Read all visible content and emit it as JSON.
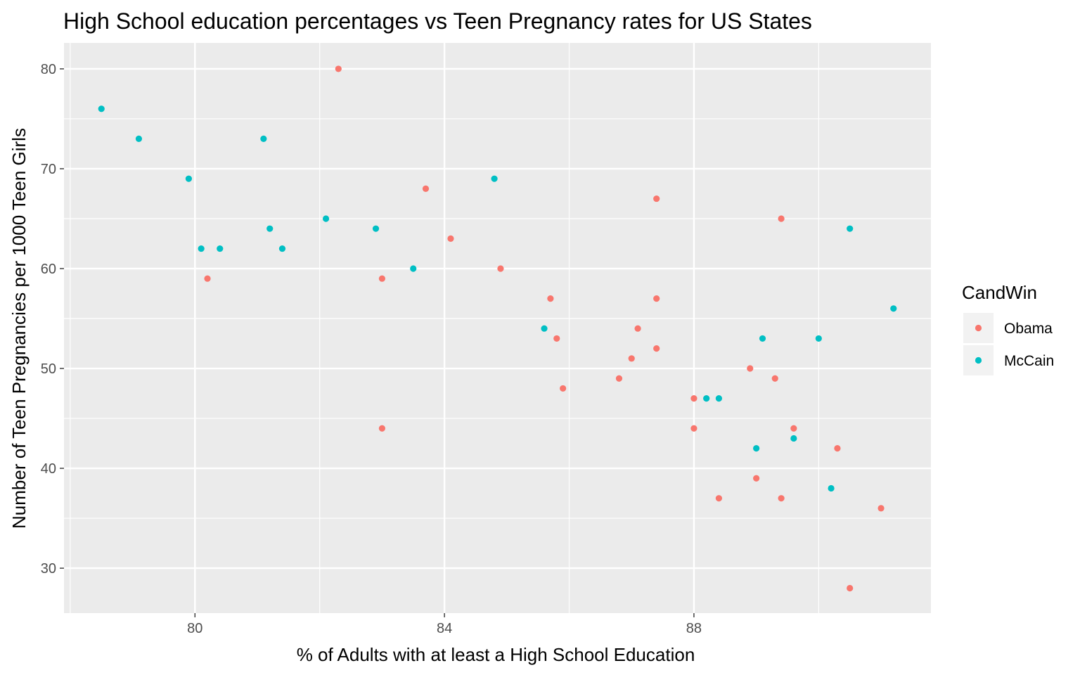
{
  "chart_data": {
    "type": "scatter",
    "title": "High School education percentages vs Teen Pregnancy rates for US States",
    "xlabel": "% of Adults with at least a High School Education",
    "ylabel": "Number of Teen Pregnancies per 1000 Teen Girls",
    "xlim": [
      77.9,
      91.8
    ],
    "ylim": [
      25.5,
      82.6
    ],
    "x_ticks": [
      80,
      84,
      88
    ],
    "y_ticks": [
      30,
      40,
      50,
      60,
      70,
      80
    ],
    "grid": true,
    "legend": {
      "title": "CandWin",
      "position": "right"
    },
    "colors": {
      "Obama": "#F8766D",
      "McCain": "#00BFC4"
    },
    "series": [
      {
        "name": "Obama",
        "points": [
          [
            82.3,
            80
          ],
          [
            83.7,
            68
          ],
          [
            84.1,
            63
          ],
          [
            80.2,
            59
          ],
          [
            83.0,
            59
          ],
          [
            84.9,
            60
          ],
          [
            83.0,
            44
          ],
          [
            85.7,
            57
          ],
          [
            85.8,
            53
          ],
          [
            85.9,
            48
          ],
          [
            86.8,
            49
          ],
          [
            87.0,
            51
          ],
          [
            87.1,
            54
          ],
          [
            87.4,
            67
          ],
          [
            87.4,
            57
          ],
          [
            87.4,
            52
          ],
          [
            88.0,
            47
          ],
          [
            88.0,
            44
          ],
          [
            88.4,
            37
          ],
          [
            88.9,
            50
          ],
          [
            89.0,
            39
          ],
          [
            89.3,
            49
          ],
          [
            89.4,
            65
          ],
          [
            89.4,
            37
          ],
          [
            89.6,
            44
          ],
          [
            90.3,
            42
          ],
          [
            90.5,
            28
          ],
          [
            91.0,
            36
          ]
        ]
      },
      {
        "name": "McCain",
        "points": [
          [
            78.5,
            76
          ],
          [
            79.1,
            73
          ],
          [
            79.9,
            69
          ],
          [
            80.1,
            62
          ],
          [
            80.4,
            62
          ],
          [
            81.1,
            73
          ],
          [
            81.2,
            64
          ],
          [
            81.4,
            62
          ],
          [
            82.1,
            65
          ],
          [
            82.9,
            64
          ],
          [
            83.5,
            60
          ],
          [
            84.8,
            69
          ],
          [
            85.6,
            54
          ],
          [
            88.2,
            47
          ],
          [
            88.4,
            47
          ],
          [
            89.0,
            42
          ],
          [
            89.1,
            53
          ],
          [
            89.6,
            43
          ],
          [
            90.0,
            53
          ],
          [
            90.2,
            38
          ],
          [
            90.5,
            64
          ],
          [
            91.2,
            56
          ]
        ]
      }
    ]
  }
}
